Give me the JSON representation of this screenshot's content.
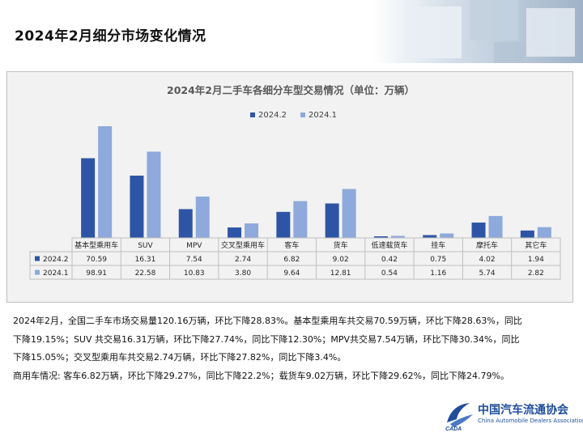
{
  "slide_title": "2024年2月细分市场变化情况",
  "colors": {
    "series_2024_2": "#2e55a5",
    "series_2024_1": "#8ea9db",
    "panel_bg": "#f2f2f2"
  },
  "chart_data": {
    "type": "bar",
    "title": "2024年2月二手车各细分车型交易情况（单位：万辆）",
    "categories": [
      "基本型乘用车",
      "SUV",
      "MPV",
      "交叉型乘用车",
      "客车",
      "货车",
      "低速载货车",
      "挂车",
      "摩托车",
      "其它车"
    ],
    "series": [
      {
        "name": "2024.2",
        "values": [
          70.59,
          16.31,
          7.54,
          2.74,
          6.82,
          9.02,
          0.42,
          0.75,
          4.02,
          1.94
        ],
        "labels": [
          "70.59",
          "16.31",
          "7.54",
          "2.74",
          "6.82",
          "9.02",
          "0.42",
          "0.75",
          "4.02",
          "1.94"
        ]
      },
      {
        "name": "2024.1",
        "values": [
          98.91,
          22.58,
          10.83,
          3.8,
          9.64,
          12.81,
          0.54,
          1.16,
          5.74,
          2.82
        ],
        "labels": [
          "98.91",
          "22.58",
          "10.83",
          "3.80",
          "9.64",
          "12.81",
          "0.54",
          "1.16",
          "5.74",
          "2.82"
        ]
      }
    ],
    "legend_position": "top",
    "axis_scale": "broken (first category not to scale)",
    "grid": false,
    "data_table": true
  },
  "paragraphs": [
    "2024年2月，全国二手车市场交易量120.16万辆，环比下降28.83%。基本型乘用车共交易70.59万辆，环比下降28.63%，同比",
    "下降19.15%；SUV 共交易16.31万辆，环比下降27.74%，同比下降12.30%；MPV共交易7.54万辆，环比下降30.34%，同比",
    "下降15.05%；交叉型乘用车共交易2.74万辆，环比下降27.82%，同比下降3.4%。",
    "商用车情况: 客车6.82万辆，环比下降29.27%，同比下降22.2%；载货车9.02万辆，环比下降29.62%，同比下降24.79%。"
  ],
  "logo": {
    "name_cn": "中国汽车流通协会",
    "name_en": "China Automobile Dealers Association",
    "emblem_text": "CADA"
  }
}
